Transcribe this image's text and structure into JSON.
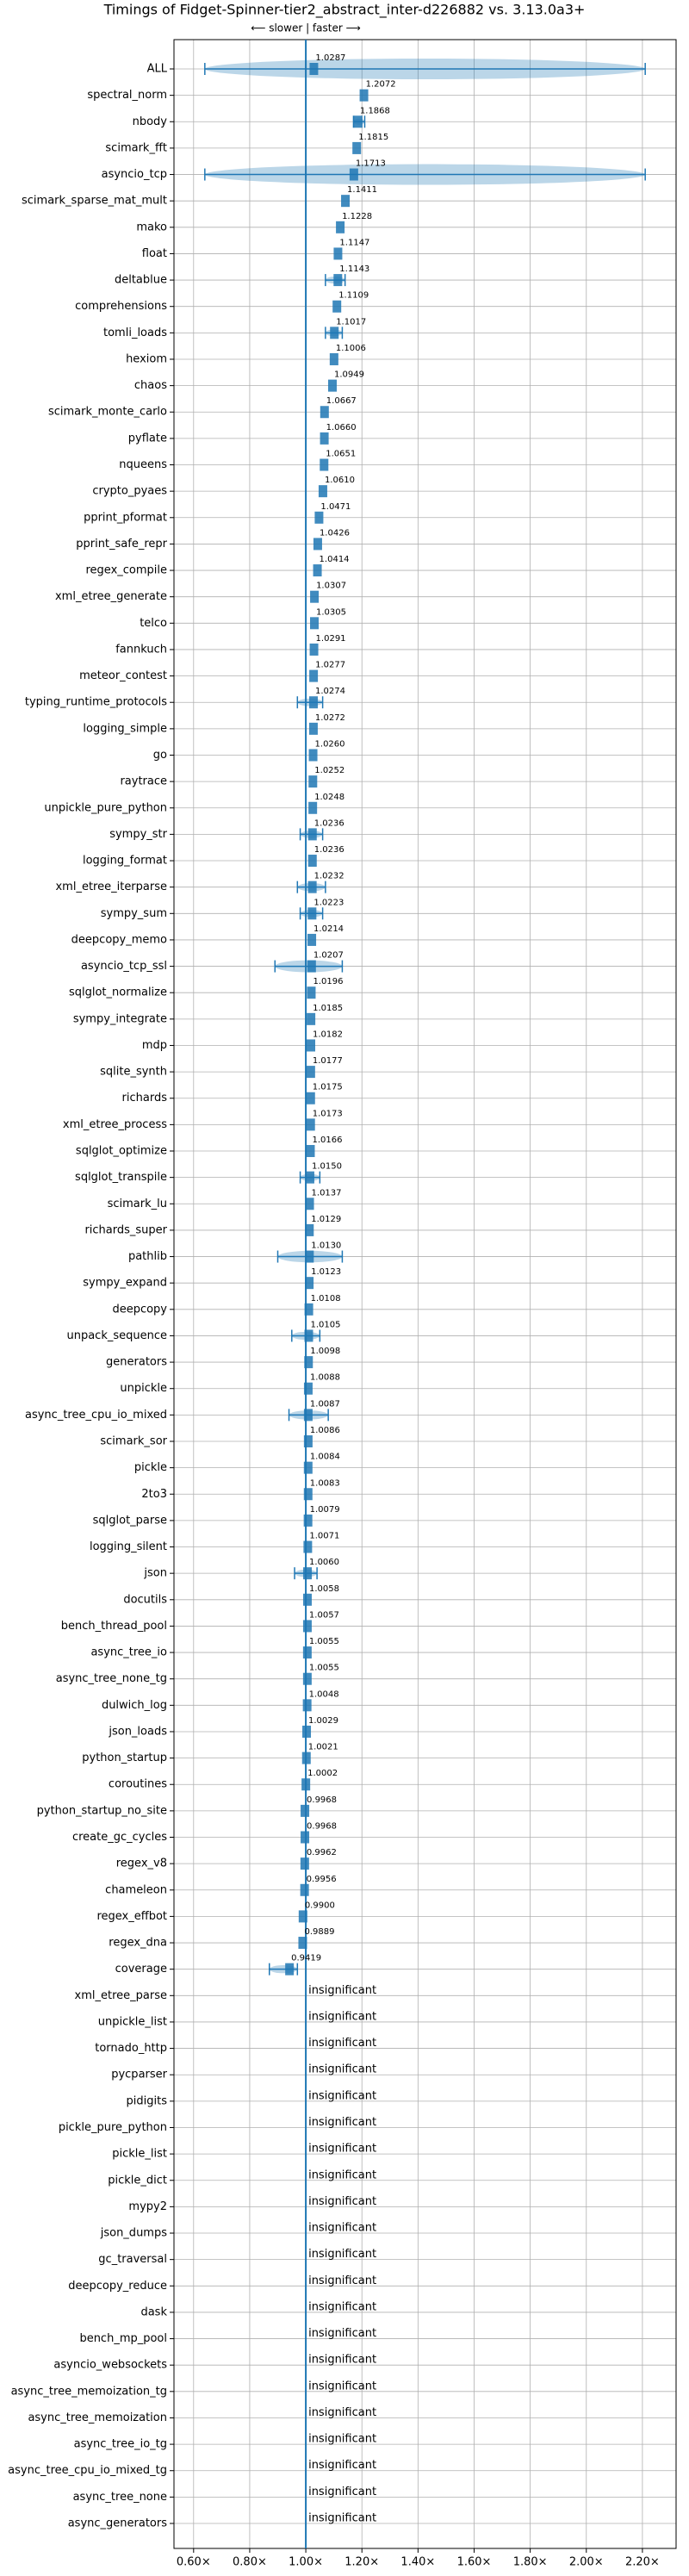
{
  "chart_data": {
    "type": "violin",
    "title": "Timings of Fidget-Spinner-tier2_abstract_inter-d226882 vs. 3.13.0a3+",
    "subtitle": "⟵ slower | faster ⟶",
    "color": "#1f77b4",
    "reference_x": 1,
    "xlim": [
      0.53,
      2.32
    ],
    "xticks": [
      {
        "value": 0.6,
        "label": "0.60×"
      },
      {
        "value": 0.8,
        "label": "0.80×"
      },
      {
        "value": 1.0,
        "label": "1.00×"
      },
      {
        "value": 1.2,
        "label": "1.20×"
      },
      {
        "value": 1.4,
        "label": "1.40×"
      },
      {
        "value": 1.6,
        "label": "1.60×"
      },
      {
        "value": 1.8,
        "label": "1.80×"
      },
      {
        "value": 2.0,
        "label": "2.00×"
      },
      {
        "value": 2.2,
        "label": "2.20×"
      }
    ],
    "grid": true,
    "categories": [
      "ALL",
      "spectral_norm",
      "nbody",
      "scimark_fft",
      "asyncio_tcp",
      "scimark_sparse_mat_mult",
      "mako",
      "float",
      "deltablue",
      "comprehensions",
      "tomli_loads",
      "hexiom",
      "chaos",
      "scimark_monte_carlo",
      "pyflate",
      "nqueens",
      "crypto_pyaes",
      "pprint_pformat",
      "pprint_safe_repr",
      "regex_compile",
      "xml_etree_generate",
      "telco",
      "fannkuch",
      "meteor_contest",
      "typing_runtime_protocols",
      "logging_simple",
      "go",
      "raytrace",
      "unpickle_pure_python",
      "sympy_str",
      "logging_format",
      "xml_etree_iterparse",
      "sympy_sum",
      "deepcopy_memo",
      "asyncio_tcp_ssl",
      "sqlglot_normalize",
      "sympy_integrate",
      "mdp",
      "sqlite_synth",
      "richards",
      "xml_etree_process",
      "sqlglot_optimize",
      "sqlglot_transpile",
      "scimark_lu",
      "richards_super",
      "pathlib",
      "sympy_expand",
      "deepcopy",
      "unpack_sequence",
      "generators",
      "unpickle",
      "async_tree_cpu_io_mixed",
      "scimark_sor",
      "pickle",
      "2to3",
      "sqlglot_parse",
      "logging_silent",
      "json",
      "docutils",
      "bench_thread_pool",
      "async_tree_io",
      "async_tree_none_tg",
      "dulwich_log",
      "json_loads",
      "python_startup",
      "coroutines",
      "python_startup_no_site",
      "create_gc_cycles",
      "regex_v8",
      "chameleon",
      "regex_effbot",
      "regex_dna",
      "coverage",
      "xml_etree_parse",
      "unpickle_list",
      "tornado_http",
      "pycparser",
      "pidigits",
      "pickle_pure_python",
      "pickle_list",
      "pickle_dict",
      "mypy2",
      "json_dumps",
      "gc_traversal",
      "deepcopy_reduce",
      "dask",
      "bench_mp_pool",
      "asyncio_websockets",
      "async_tree_memoization_tg",
      "async_tree_memoization",
      "async_tree_io_tg",
      "async_tree_cpu_io_mixed_tg",
      "async_tree_none",
      "async_generators"
    ],
    "values": [
      1.0287,
      1.2072,
      1.1868,
      1.1815,
      1.1713,
      1.1411,
      1.1228,
      1.1147,
      1.1143,
      1.1109,
      1.1017,
      1.1006,
      1.0949,
      1.0667,
      1.066,
      1.0651,
      1.061,
      1.0471,
      1.0426,
      1.0414,
      1.0307,
      1.0305,
      1.0291,
      1.0277,
      1.0274,
      1.0272,
      1.026,
      1.0252,
      1.0248,
      1.0236,
      1.0236,
      1.0232,
      1.0223,
      1.0214,
      1.0207,
      1.0196,
      1.0185,
      1.0182,
      1.0177,
      1.0175,
      1.0173,
      1.0166,
      1.015,
      1.0137,
      1.0129,
      1.013,
      1.0123,
      1.0108,
      1.0105,
      1.0098,
      1.0088,
      1.0087,
      1.0086,
      1.0084,
      1.0083,
      1.0079,
      1.0071,
      1.006,
      1.0058,
      1.0057,
      1.0055,
      1.0055,
      1.0048,
      1.0029,
      1.0021,
      1.0002,
      0.9968,
      0.9968,
      0.9962,
      0.9956,
      0.99,
      0.9889,
      0.9419,
      null,
      null,
      null,
      null,
      null,
      null,
      null,
      null,
      null,
      null,
      null,
      null,
      null,
      null,
      null,
      null,
      null,
      null,
      null,
      null,
      null
    ],
    "value_labels": [
      "1.0287",
      "1.2072",
      "1.1868",
      "1.1815",
      "1.1713",
      "1.1411",
      "1.1228",
      "1.1147",
      "1.1143",
      "1.1109",
      "1.1017",
      "1.1006",
      "1.0949",
      "1.0667",
      "1.0660",
      "1.0651",
      "1.0610",
      "1.0471",
      "1.0426",
      "1.0414",
      "1.0307",
      "1.0305",
      "1.0291",
      "1.0277",
      "1.0274",
      "1.0272",
      "1.0260",
      "1.0252",
      "1.0248",
      "1.0236",
      "1.0236",
      "1.0232",
      "1.0223",
      "1.0214",
      "1.0207",
      "1.0196",
      "1.0185",
      "1.0182",
      "1.0177",
      "1.0175",
      "1.0173",
      "1.0166",
      "1.0150",
      "1.0137",
      "1.0129",
      "1.0130",
      "1.0123",
      "1.0108",
      "1.0105",
      "1.0098",
      "1.0088",
      "1.0087",
      "1.0086",
      "1.0084",
      "1.0083",
      "1.0079",
      "1.0071",
      "1.0060",
      "1.0058",
      "1.0057",
      "1.0055",
      "1.0055",
      "1.0048",
      "1.0029",
      "1.0021",
      "1.0002",
      "0.9968",
      "0.9968",
      "0.9962",
      "0.9956",
      "0.9900",
      "0.9889",
      "0.9419",
      "insignificant",
      "insignificant",
      "insignificant",
      "insignificant",
      "insignificant",
      "insignificant",
      "insignificant",
      "insignificant",
      "insignificant",
      "insignificant",
      "insignificant",
      "insignificant",
      "insignificant",
      "insignificant",
      "insignificant",
      "insignificant",
      "insignificant",
      "insignificant",
      "insignificant",
      "insignificant",
      "insignificant"
    ],
    "spread": [
      [
        0.64,
        2.21
      ],
      null,
      [
        1.17,
        1.21
      ],
      null,
      [
        0.64,
        2.21
      ],
      null,
      null,
      null,
      [
        1.07,
        1.14
      ],
      null,
      [
        1.07,
        1.13
      ],
      null,
      null,
      null,
      null,
      null,
      null,
      null,
      null,
      null,
      null,
      null,
      null,
      null,
      [
        0.97,
        1.06
      ],
      null,
      null,
      null,
      null,
      [
        0.98,
        1.06
      ],
      null,
      [
        0.97,
        1.07
      ],
      [
        0.98,
        1.06
      ],
      null,
      [
        0.89,
        1.13
      ],
      null,
      null,
      null,
      null,
      null,
      null,
      null,
      [
        0.98,
        1.05
      ],
      null,
      null,
      [
        0.9,
        1.13
      ],
      null,
      null,
      [
        0.95,
        1.05
      ],
      null,
      null,
      [
        0.94,
        1.08
      ],
      null,
      null,
      null,
      null,
      null,
      [
        0.96,
        1.04
      ],
      null,
      null,
      null,
      null,
      null,
      null,
      null,
      null,
      null,
      null,
      null,
      null,
      null,
      null,
      [
        0.87,
        0.97
      ],
      null,
      null,
      null,
      null,
      null,
      null,
      null,
      null,
      null,
      null,
      null,
      null,
      null,
      null,
      null,
      null,
      null,
      null,
      null,
      null,
      null
    ]
  }
}
